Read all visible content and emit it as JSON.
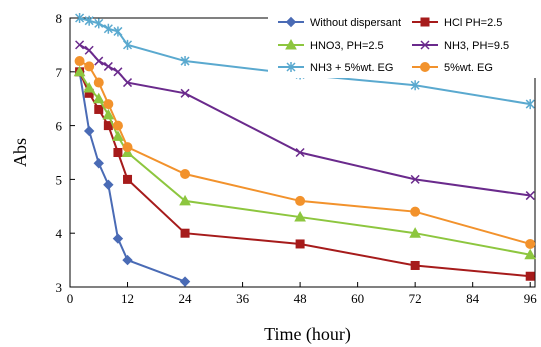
{
  "chart_data": {
    "type": "line",
    "title": "",
    "xlabel": "Time (hour)",
    "ylabel": "Abs",
    "xlim": [
      0,
      97
    ],
    "ylim": [
      3,
      8
    ],
    "x_ticks": [
      0,
      12,
      24,
      36,
      48,
      60,
      72,
      84,
      96
    ],
    "y_ticks": [
      3,
      4,
      5,
      6,
      7,
      8
    ],
    "x_tick_labels": [
      "0",
      "12",
      "24",
      "36",
      "48",
      "60",
      "72",
      "84",
      "96"
    ],
    "y_tick_labels": [
      "3",
      "4",
      "5",
      "6",
      "7",
      "8"
    ],
    "grid": false,
    "legend_position": "top-right",
    "series": [
      {
        "name": "Without dispersant",
        "color": "#4a6bb5",
        "marker": "diamond",
        "x": [
          2,
          4,
          6,
          8,
          10,
          12,
          24
        ],
        "y": [
          7.0,
          5.9,
          5.3,
          4.9,
          3.9,
          3.5,
          3.1
        ]
      },
      {
        "name": "HCl PH=2.5",
        "color": "#a61b1b",
        "marker": "square",
        "x": [
          2,
          4,
          6,
          8,
          10,
          12,
          24,
          48,
          72,
          96
        ],
        "y": [
          7.0,
          6.6,
          6.3,
          6.0,
          5.5,
          5.0,
          4.0,
          3.8,
          3.4,
          3.2
        ]
      },
      {
        "name": "HNO3, PH=2.5",
        "color": "#8dc63f",
        "marker": "triangle",
        "x": [
          2,
          4,
          6,
          8,
          10,
          12,
          24,
          48,
          72,
          96
        ],
        "y": [
          7.0,
          6.7,
          6.5,
          6.2,
          5.8,
          5.5,
          4.6,
          4.3,
          4.0,
          3.6
        ]
      },
      {
        "name": "NH3, PH=9.5",
        "color": "#6a2a8c",
        "marker": "x",
        "x": [
          2,
          4,
          6,
          8,
          10,
          12,
          24,
          48,
          72,
          96
        ],
        "y": [
          7.5,
          7.4,
          7.2,
          7.1,
          7.0,
          6.8,
          6.6,
          5.5,
          5.0,
          4.7
        ]
      },
      {
        "name": "NH3 + 5%wt. EG",
        "color": "#5aa9cf",
        "marker": "star",
        "x": [
          2,
          4,
          6,
          8,
          10,
          12,
          24,
          48,
          72,
          96
        ],
        "y": [
          8.0,
          7.95,
          7.9,
          7.8,
          7.75,
          7.5,
          7.2,
          6.95,
          6.75,
          6.4
        ]
      },
      {
        "name": "5%wt. EG",
        "color": "#f2922c",
        "marker": "circle",
        "x": [
          2,
          4,
          6,
          8,
          10,
          12,
          24,
          48,
          72,
          96
        ],
        "y": [
          7.2,
          7.1,
          6.8,
          6.4,
          6.0,
          5.6,
          5.1,
          4.6,
          4.4,
          3.8
        ]
      }
    ]
  }
}
